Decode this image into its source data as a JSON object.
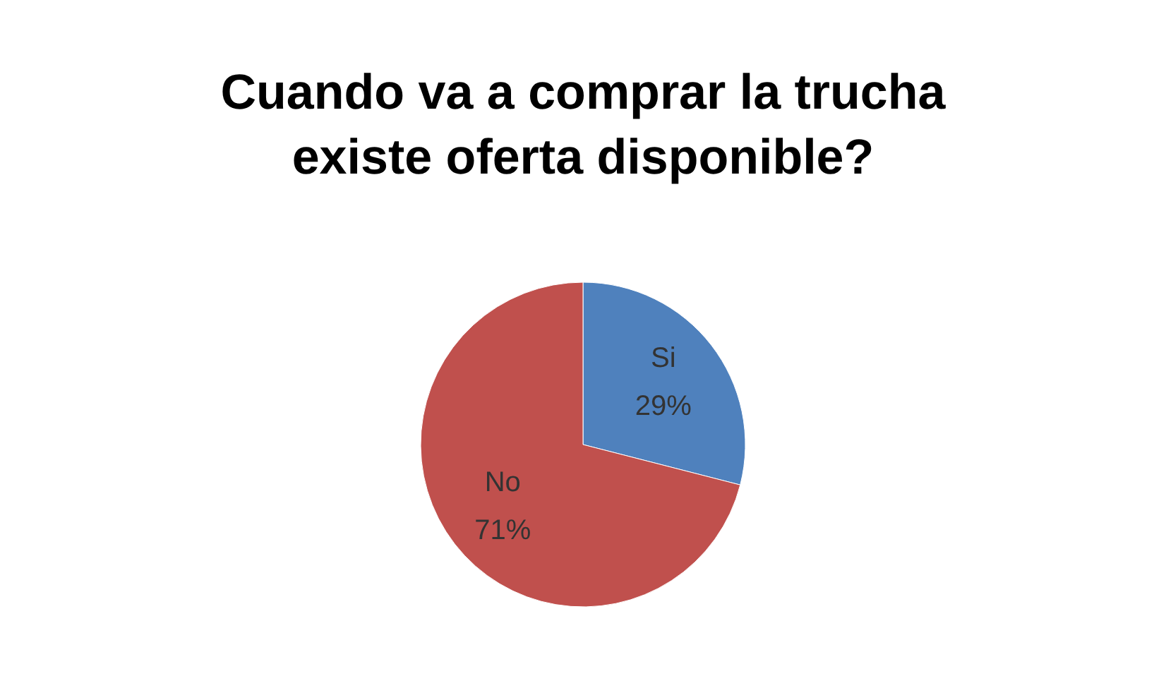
{
  "chart_data": {
    "type": "pie",
    "title": "Cuando va a comprar la trucha existe oferta disponible?",
    "categories": [
      "Si",
      "No"
    ],
    "values": [
      29,
      71
    ],
    "colors": [
      "#4f81bd",
      "#c0504d"
    ],
    "value_labels": [
      "29%",
      "71%"
    ],
    "legend": false
  }
}
